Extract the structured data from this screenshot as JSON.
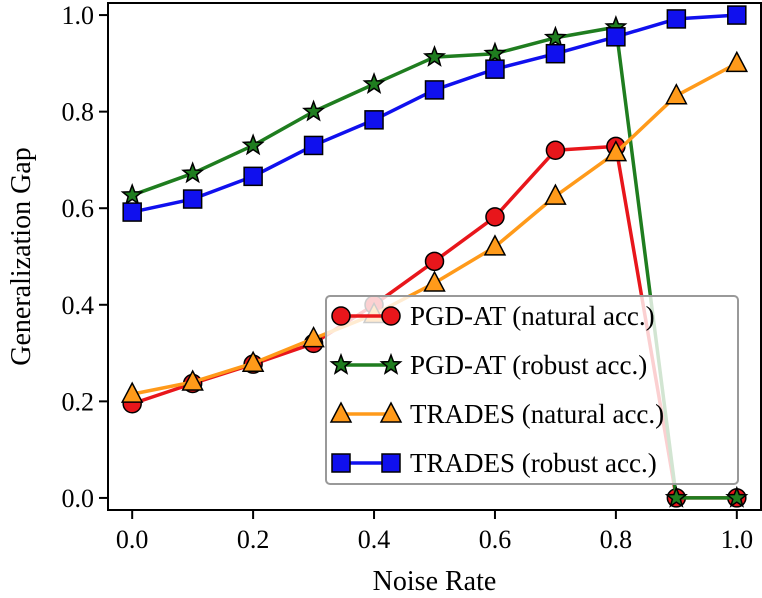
{
  "chart_data": {
    "type": "line",
    "title": "",
    "xlabel": "Noise Rate",
    "ylabel": "Generalization Gap",
    "xlim": [
      -0.04,
      1.04
    ],
    "ylim": [
      -0.025,
      1.025
    ],
    "xticks": [
      0.0,
      0.2,
      0.4,
      0.6,
      0.8,
      1.0
    ],
    "xtick_labels": [
      "0.0",
      "0.2",
      "0.4",
      "0.6",
      "0.8",
      "1.0"
    ],
    "yticks": [
      0.0,
      0.2,
      0.4,
      0.6,
      0.8,
      1.0
    ],
    "ytick_labels": [
      "0.0",
      "0.2",
      "0.4",
      "0.6",
      "0.8",
      "1.0"
    ],
    "x": [
      0.0,
      0.1,
      0.2,
      0.3,
      0.4,
      0.5,
      0.6,
      0.7,
      0.8,
      0.9,
      1.0
    ],
    "legend_position": "lower-right",
    "grid": false,
    "series": [
      {
        "name": "PGD-AT (natural acc.)",
        "color": "#e8161b",
        "marker": "circle",
        "values": [
          0.195,
          0.237,
          0.277,
          0.32,
          0.4,
          0.49,
          0.582,
          0.72,
          0.728,
          0.0,
          0.0
        ]
      },
      {
        "name": "PGD-AT (robust acc.)",
        "color": "#1f7d1f",
        "marker": "star",
        "values": [
          0.627,
          0.672,
          0.73,
          0.8,
          0.857,
          0.913,
          0.92,
          0.953,
          0.975,
          0.0,
          0.0
        ]
      },
      {
        "name": "TRADES (natural acc.)",
        "color": "#ff9a1a",
        "marker": "triangle",
        "values": [
          0.215,
          0.24,
          0.279,
          0.33,
          0.38,
          0.445,
          0.52,
          0.625,
          0.715,
          0.833,
          0.9
        ]
      },
      {
        "name": "TRADES (robust acc.)",
        "color": "#1010ee",
        "marker": "square",
        "values": [
          0.592,
          0.619,
          0.666,
          0.73,
          0.783,
          0.845,
          0.888,
          0.92,
          0.955,
          0.992,
          1.0
        ]
      }
    ]
  }
}
